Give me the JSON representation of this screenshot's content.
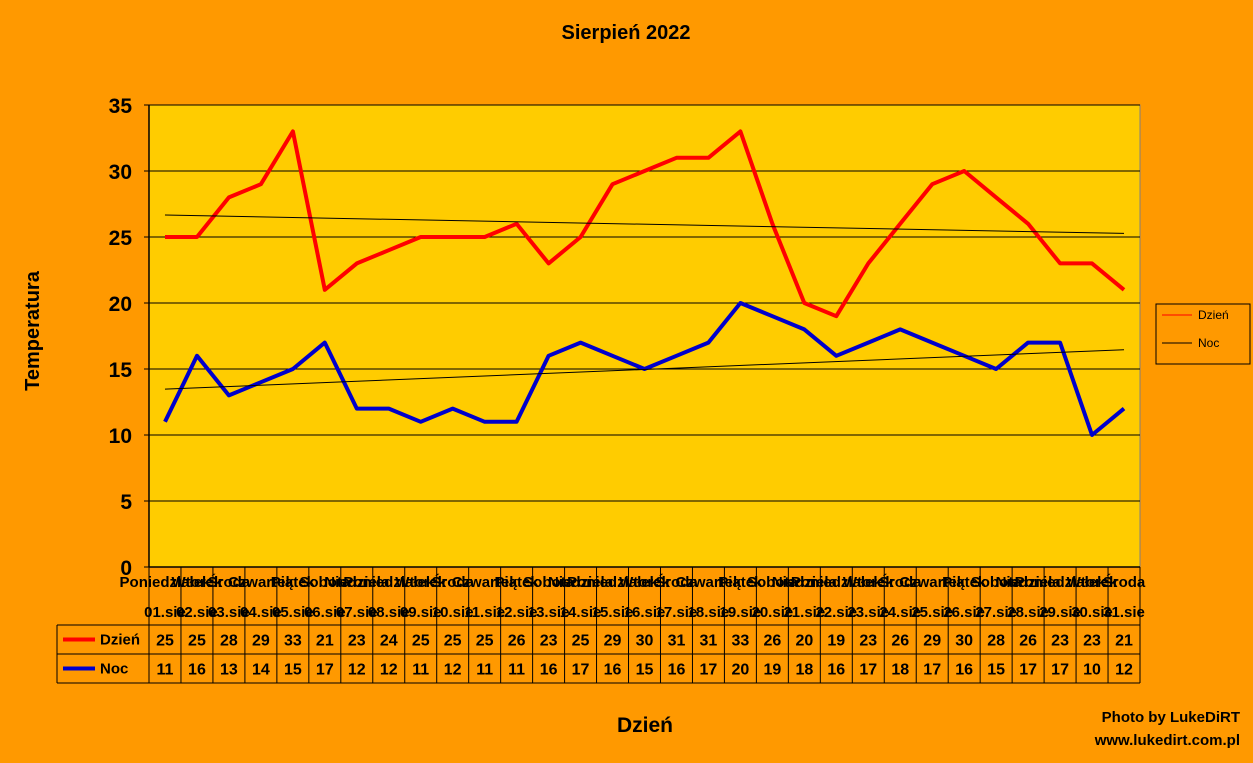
{
  "chart_data": {
    "type": "line",
    "title": "Sierpień 2022",
    "xlabel": "Dzień",
    "ylabel": "Temperatura",
    "ylim": [
      0,
      35
    ],
    "yticks": [
      0,
      5,
      10,
      15,
      20,
      25,
      30,
      35
    ],
    "grid": true,
    "legend_position": "right",
    "trendlines": true,
    "weekdays": [
      "Poniedziałek",
      "Wtorek",
      "Środa",
      "Czwartek",
      "Piątek",
      "Sobota",
      "Niedziela",
      "Poniedziałek",
      "Wtorek",
      "Środa",
      "Czwartek",
      "Piątek",
      "Sobota",
      "Niedziela",
      "Poniedziałek",
      "Wtorek",
      "Środa",
      "Czwartek",
      "Piątek",
      "Sobota",
      "Niedziela",
      "Poniedziałek",
      "Wtorek",
      "Środa",
      "Czwartek",
      "Piątek",
      "Sobota",
      "Niedziela",
      "Poniedziałek",
      "Wtorek",
      "Środa"
    ],
    "categories": [
      "01.sie",
      "02.sie",
      "03.sie",
      "04.sie",
      "05.sie",
      "06.sie",
      "07.sie",
      "08.sie",
      "09.sie",
      "10.sie",
      "11.sie",
      "12.sie",
      "13.sie",
      "14.sie",
      "15.sie",
      "16.sie",
      "17.sie",
      "18.sie",
      "19.sie",
      "20.sie",
      "21.sie",
      "22.sie",
      "23.sie",
      "24.sie",
      "25.sie",
      "26.sie",
      "27.sie",
      "28.sie",
      "29.sie",
      "30.sie",
      "31.sie"
    ],
    "series": [
      {
        "name": "Dzień",
        "color": "#FF0000",
        "values": [
          25,
          25,
          28,
          29,
          33,
          21,
          23,
          24,
          25,
          25,
          25,
          26,
          23,
          25,
          29,
          30,
          31,
          31,
          33,
          26,
          20,
          19,
          23,
          26,
          29,
          30,
          28,
          26,
          23,
          23,
          21
        ]
      },
      {
        "name": "Noc",
        "color": "#0000CC",
        "values": [
          11,
          16,
          13,
          14,
          15,
          17,
          12,
          12,
          11,
          12,
          11,
          11,
          16,
          17,
          16,
          15,
          16,
          17,
          20,
          19,
          18,
          16,
          17,
          18,
          17,
          16,
          15,
          17,
          17,
          10,
          12
        ]
      }
    ],
    "colors": {
      "page_background": "#FF9900",
      "plot_background": "#FFCC00"
    }
  },
  "credit": {
    "line1": "Photo by LukeDiRT",
    "line2": "www.lukedirt.com.pl"
  }
}
